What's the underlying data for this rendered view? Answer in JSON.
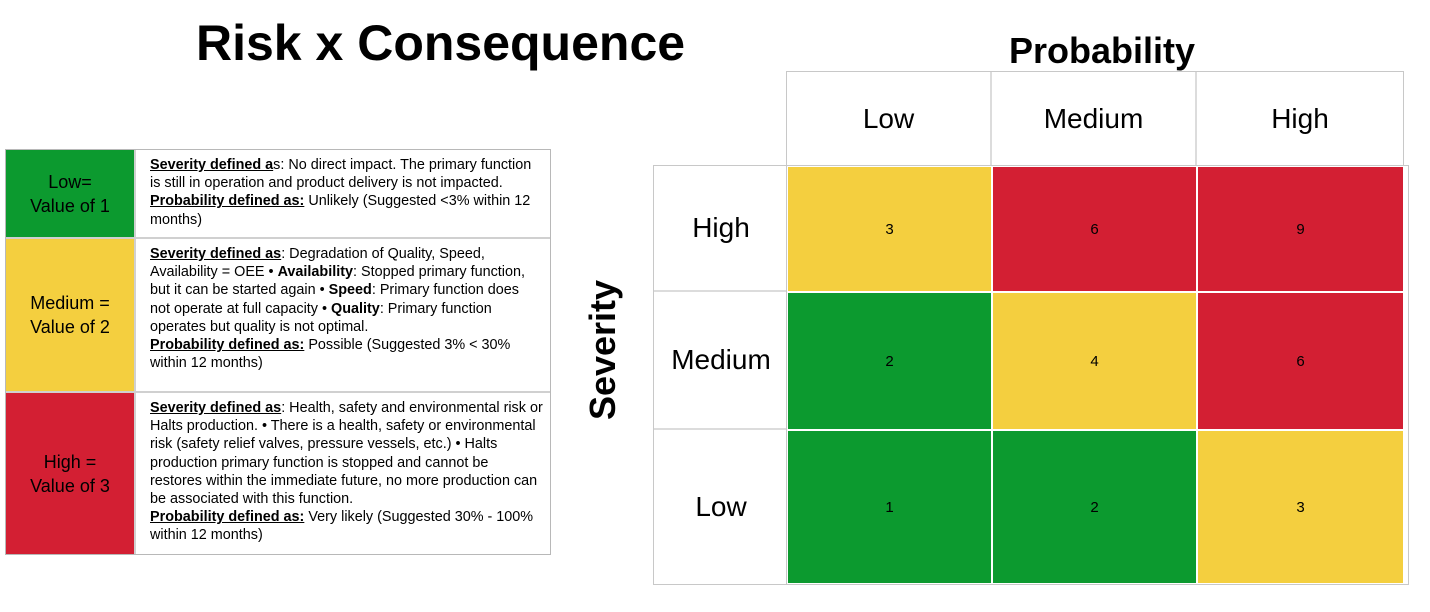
{
  "title": "Risk x Consequence",
  "colors": {
    "green": "#0c9a2f",
    "yellow": "#f4cf3f",
    "red": "#d31f33"
  },
  "legend": [
    {
      "level_line1": "Low=",
      "level_line2": "Value of 1",
      "color": "#0c9a2f",
      "lines": [
        [
          {
            "t": "Severity defined a",
            "s": "u"
          },
          {
            "t": "s: No direct impact. The primary function"
          }
        ],
        [
          {
            "t": "is still in operation and product delivery is not impacted."
          }
        ],
        [
          {
            "t": "Probability defined as:",
            "s": "u"
          },
          {
            "t": " Unlikely (Suggested <3% within 12"
          }
        ],
        [
          {
            "t": "months)"
          }
        ]
      ]
    },
    {
      "level_line1": "Medium =",
      "level_line2": "Value of 2",
      "color": "#f4cf3f",
      "lines": [
        [
          {
            "t": "Severity defined as",
            "s": "u"
          },
          {
            "t": ": Degradation of Quality, Speed,"
          }
        ],
        [
          {
            "t": "Availability = OEE  • "
          },
          {
            "t": "Availability",
            "s": "b"
          },
          {
            "t": ": Stopped primary function,"
          }
        ],
        [
          {
            "t": "but it can be started again  • "
          },
          {
            "t": "Speed",
            "s": "b"
          },
          {
            "t": ": Primary function does"
          }
        ],
        [
          {
            "t": "not operate at full capacity • "
          },
          {
            "t": "Quality",
            "s": "b"
          },
          {
            "t": ": Primary function"
          }
        ],
        [
          {
            "t": "operates but quality is not optimal."
          }
        ],
        [
          {
            "t": "Probability defined as:",
            "s": "u"
          },
          {
            "t": " Possible (Suggested 3% < 30%"
          }
        ],
        [
          {
            "t": "within 12 months)"
          }
        ]
      ]
    },
    {
      "level_line1": "High =",
      "level_line2": "Value of 3",
      "color": "#d31f33",
      "lines": [
        [
          {
            "t": "Severity defined as",
            "s": "u"
          },
          {
            "t": ": Health, safety and environmental risk or"
          }
        ],
        [
          {
            "t": "Halts production.  • There is a health, safety or environmental"
          }
        ],
        [
          {
            "t": "risk (safety relief valves, pressure vessels, etc.) • Halts"
          }
        ],
        [
          {
            "t": "production primary function is stopped and cannot be"
          }
        ],
        [
          {
            "t": "restores within the immediate future, no more production can"
          }
        ],
        [
          {
            "t": "be associated with this function."
          }
        ],
        [
          {
            "t": "Probability defined as:",
            "s": "u"
          },
          {
            "t": " Very likely (Suggested 30% - 100%"
          }
        ],
        [
          {
            "t": "within 12 months)"
          }
        ]
      ]
    }
  ],
  "matrix": {
    "probability_label": "Probability",
    "severity_label": "Severity",
    "columns": [
      "Low",
      "Medium",
      "High"
    ],
    "rows": [
      {
        "label": "High",
        "cells": [
          {
            "value": "3",
            "color": "yellow"
          },
          {
            "value": "6",
            "color": "red"
          },
          {
            "value": "9",
            "color": "red"
          }
        ]
      },
      {
        "label": "Medium",
        "cells": [
          {
            "value": "2",
            "color": "green"
          },
          {
            "value": "4",
            "color": "yellow"
          },
          {
            "value": "6",
            "color": "red"
          }
        ]
      },
      {
        "label": "Low",
        "cells": [
          {
            "value": "1",
            "color": "green"
          },
          {
            "value": "2",
            "color": "green"
          },
          {
            "value": "3",
            "color": "yellow"
          }
        ]
      }
    ]
  }
}
